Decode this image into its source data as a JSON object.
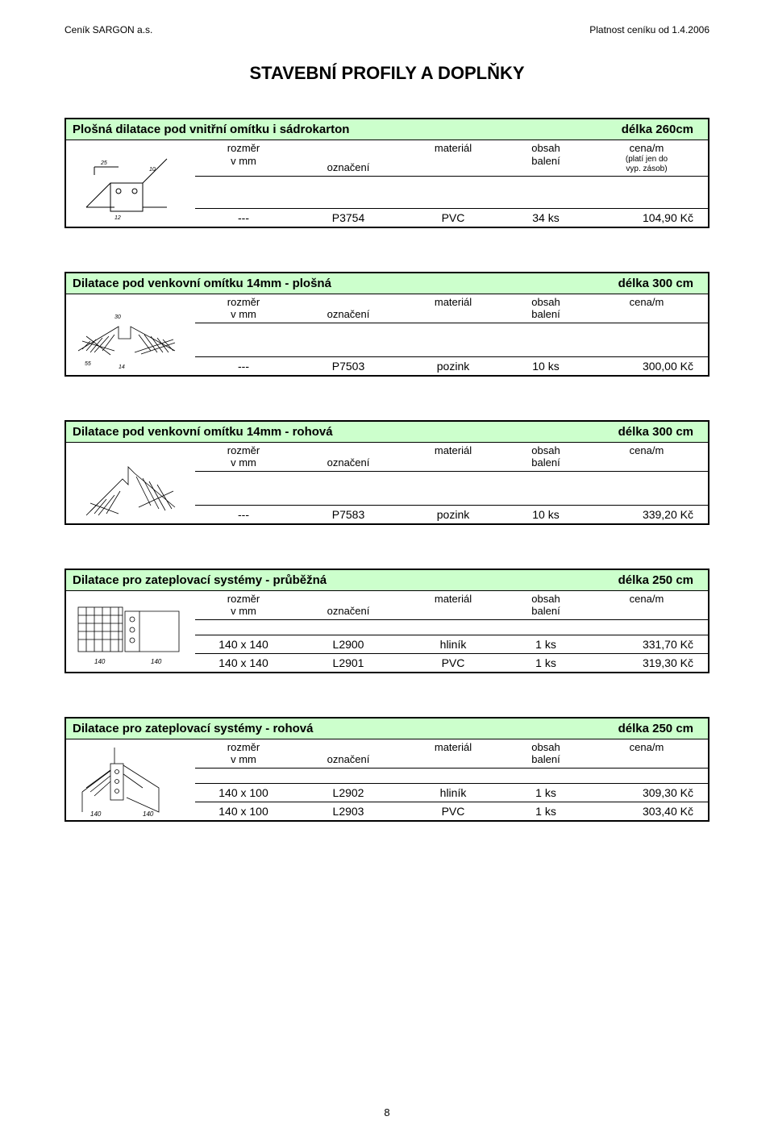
{
  "header": {
    "left": "Ceník SARGON a.s.",
    "right": "Platnost ceníku od 1.4.2006"
  },
  "main_title": "STAVEBNÍ PROFILY A DOPLŇKY",
  "column_labels": {
    "rozmer": "rozměr",
    "vmm": "v mm",
    "oznaceni": "označení",
    "material": "materiál",
    "obsah": "obsah",
    "baleni": "balení",
    "cena": "cena/m",
    "plati_jen_do": "(platí jen do",
    "vyp_zasob": "vyp. zásob)"
  },
  "colors": {
    "title_bg": "#ccffcc",
    "border": "#000000",
    "text": "#000000",
    "page_bg": "#ffffff"
  },
  "sections": [
    {
      "title_left": "Plošná dilatace pod vnitřní omítku i sádrokarton",
      "title_right": "délka 260cm",
      "show_cena_note": true,
      "diagram": "bracket",
      "rows": [
        {
          "rozmer": "---",
          "oznaceni": "P3754",
          "material": "PVC",
          "obsah": "34 ks",
          "cena": "104,90 Kč"
        }
      ]
    },
    {
      "title_left": "Dilatace pod venkovní omítku 14mm - plošná",
      "title_right": "délka 300 cm",
      "show_cena_note": false,
      "diagram": "mesh-flat",
      "rows": [
        {
          "rozmer": "---",
          "oznaceni": "P7503",
          "material": "pozink",
          "obsah": "10 ks",
          "cena": "300,00 Kč"
        }
      ]
    },
    {
      "title_left": "Dilatace pod venkovní omítku 14mm - rohová",
      "title_right": "délka 300 cm",
      "show_cena_note": false,
      "diagram": "mesh-corner",
      "rows": [
        {
          "rozmer": "---",
          "oznaceni": "P7583",
          "material": "pozink",
          "obsah": "10 ks",
          "cena": "339,20 Kč"
        }
      ]
    },
    {
      "title_left": "Dilatace pro zateplovací systémy - průběžná",
      "title_right": "délka 250 cm",
      "show_cena_note": false,
      "diagram": "insul-flat",
      "rows": [
        {
          "rozmer": "140 x 140",
          "oznaceni": "L2900",
          "material": "hliník",
          "obsah": "1 ks",
          "cena": "331,70 Kč"
        },
        {
          "rozmer": "140 x 140",
          "oznaceni": "L2901",
          "material": "PVC",
          "obsah": "1 ks",
          "cena": "319,30 Kč"
        }
      ]
    },
    {
      "title_left": "Dilatace pro zateplovací systémy - rohová",
      "title_right": "délka 250 cm",
      "show_cena_note": false,
      "diagram": "insul-corner",
      "rows": [
        {
          "rozmer": "140 x 100",
          "oznaceni": "L2902",
          "material": "hliník",
          "obsah": "1 ks",
          "cena": "309,30 Kč"
        },
        {
          "rozmer": "140 x 100",
          "oznaceni": "L2903",
          "material": "PVC",
          "obsah": "1 ks",
          "cena": "303,40 Kč"
        }
      ]
    }
  ],
  "page_number": "8"
}
